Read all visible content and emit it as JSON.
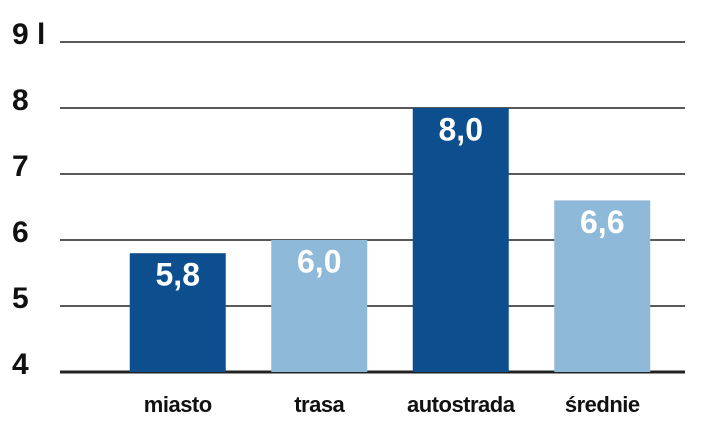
{
  "chart_data": {
    "type": "bar",
    "categories": [
      "miasto",
      "trasa",
      "autostrada",
      "średnie"
    ],
    "values": [
      5.8,
      6.0,
      8.0,
      6.6
    ],
    "value_labels": [
      "5,8",
      "6,0",
      "8,0",
      "6,6"
    ],
    "colors": [
      "#0c4e8e",
      "#8fb9d9",
      "#0c4e8e",
      "#8fb9d9"
    ],
    "ylim": [
      4,
      9
    ],
    "yticks": [
      4,
      5,
      6,
      7,
      8,
      {
        "value": 9,
        "label": "9 l"
      }
    ],
    "grid": true
  }
}
